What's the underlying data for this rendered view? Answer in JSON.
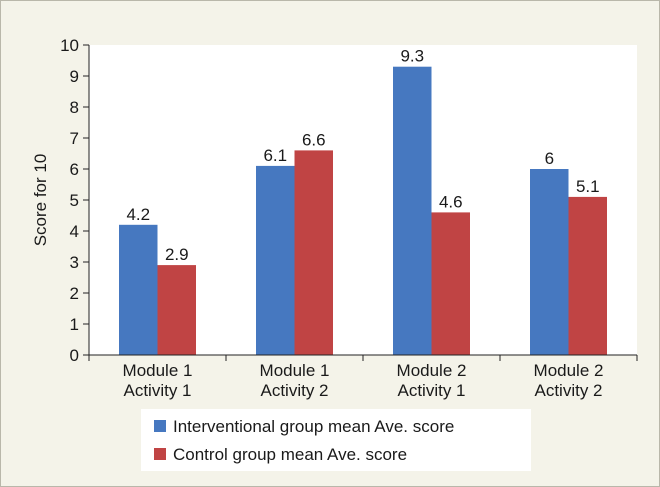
{
  "chart_data": {
    "type": "bar",
    "title": "",
    "xlabel": "",
    "ylabel": "Score for 10",
    "ylim": [
      0,
      10
    ],
    "yticks": [
      0,
      1,
      2,
      3,
      4,
      5,
      6,
      7,
      8,
      9,
      10
    ],
    "grid": false,
    "legend_position": "bottom",
    "categories": [
      [
        "Module 1",
        "Activity 1"
      ],
      [
        "Module 1",
        "Activity 2"
      ],
      [
        "Module 2",
        "Activity 1"
      ],
      [
        "Module 2",
        "Activity 2"
      ]
    ],
    "series": [
      {
        "name": "Interventional group mean Ave. score",
        "color": "#4678c0",
        "values": [
          4.2,
          6.1,
          9.3,
          6
        ],
        "labels": [
          "4.2",
          "6.1",
          "9.3",
          "6"
        ]
      },
      {
        "name": "Control group mean Ave. score",
        "color": "#c04444",
        "values": [
          2.9,
          6.6,
          4.6,
          5.1
        ],
        "labels": [
          "2.9",
          "6.6",
          "4.6",
          "5.1"
        ]
      }
    ]
  }
}
